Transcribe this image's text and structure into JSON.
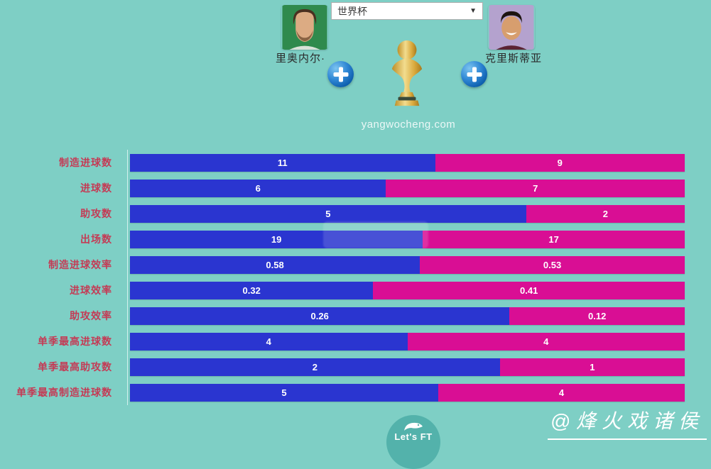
{
  "header": {
    "left_player": {
      "name": "里奥内尔·"
    },
    "right_player": {
      "name": "克里斯蒂亚"
    },
    "competition_select": {
      "value": "世界杯"
    },
    "site_watermark": "yangwocheng.com"
  },
  "chart_data": {
    "type": "bar",
    "subtype": "horizontal-stacked-comparison",
    "categories": [
      "制造进球数",
      "进球数",
      "助攻数",
      "出场数",
      "制造进球效率",
      "进球效率",
      "助攻效率",
      "单季最高进球数",
      "单季最高助攻数",
      "单季最高制造进球数"
    ],
    "series": [
      {
        "name": "里奥内尔·",
        "side": "left",
        "color": "#2A35D0",
        "values": [
          11,
          6,
          5,
          19,
          0.58,
          0.32,
          0.26,
          4,
          2,
          5
        ]
      },
      {
        "name": "克里斯蒂亚",
        "side": "right",
        "color": "#D90E94",
        "values": [
          9,
          7,
          2,
          17,
          0.53,
          0.41,
          0.12,
          4,
          1,
          4
        ]
      }
    ],
    "value_labels_shown": true,
    "bar_width_rule": "segment width proportional to value share of row total",
    "legend_position": "none"
  },
  "footer": {
    "badge_text": "Let's FT",
    "author_watermark": "@烽火戏诸侯"
  },
  "icons": {
    "dropdown_arrow": "chevron-down-icon",
    "add_button": "plus-icon",
    "trophy": "world-cup-trophy-icon",
    "badge_bird": "bird-icon"
  },
  "colors": {
    "background": "#7ECFC5",
    "bar_left": "#2A35D0",
    "bar_right": "#D90E94",
    "category_label": "#C43B55",
    "bar_value_text": "#ffffff"
  }
}
